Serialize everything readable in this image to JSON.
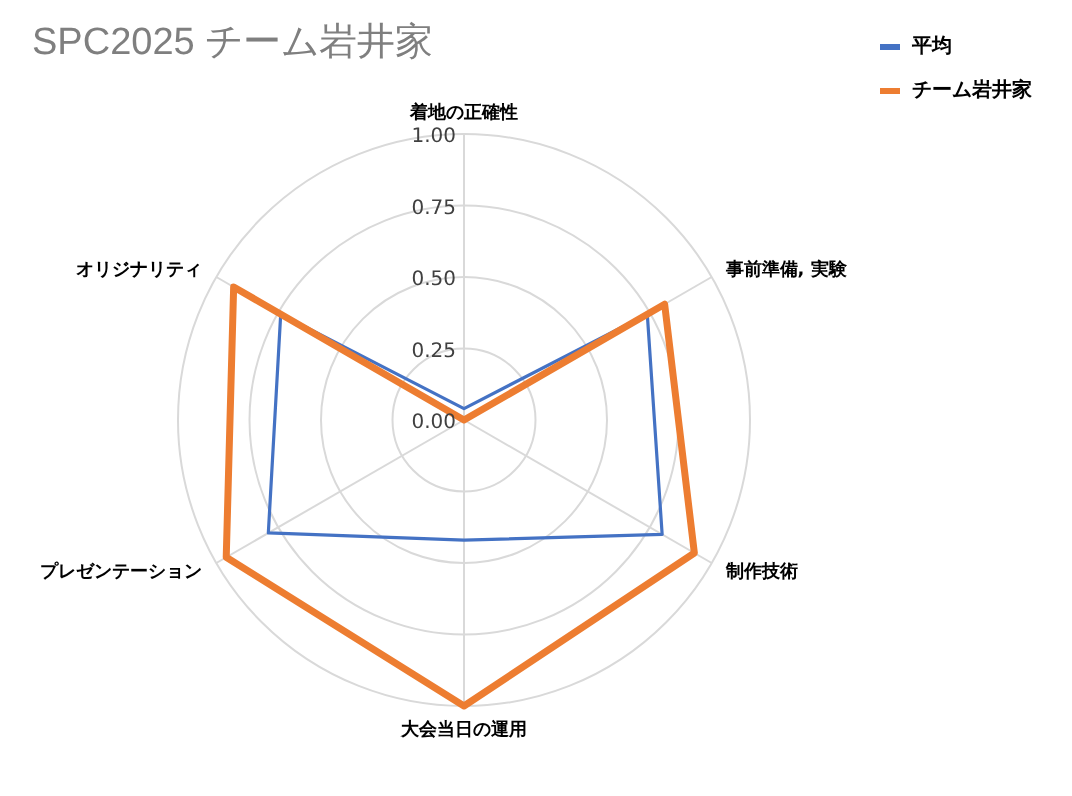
{
  "chart_data": {
    "type": "radar",
    "title": "SPC2025 チーム岩井家",
    "categories": [
      "着地の正確性",
      "事前準備, 実験",
      "制作技術",
      "大会当日の運用",
      "プレゼンテーション",
      "オリジナリティ"
    ],
    "series": [
      {
        "name": "平均",
        "color": "#4472c4",
        "values": [
          0.04,
          0.74,
          0.8,
          0.42,
          0.79,
          0.74
        ]
      },
      {
        "name": "チーム岩井家",
        "color": "#ed7d31",
        "values": [
          0,
          0.81,
          0.93,
          1.0,
          0.96,
          0.93
        ]
      }
    ],
    "ylim": [
      0,
      1
    ],
    "yticks": [
      {
        "value": 0,
        "label": "0.00"
      },
      {
        "value": 0.25,
        "label": "0.25"
      },
      {
        "value": 0.5,
        "label": "0.50"
      },
      {
        "value": 0.75,
        "label": "0.75"
      },
      {
        "value": 1,
        "label": "1.00"
      }
    ],
    "grid": true,
    "legend": "top right",
    "marker": "none"
  }
}
